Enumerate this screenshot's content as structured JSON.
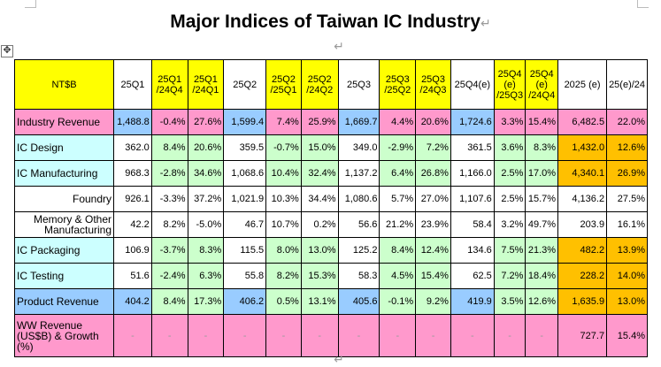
{
  "title": "Major Indices of Taiwan IC Industry",
  "para_mark": "↵",
  "move_handle": "✥",
  "header": {
    "unit": "NT$B",
    "cols": [
      "25Q1",
      "25Q1 /24Q4",
      "25Q1 /24Q1",
      "25Q2",
      "25Q2 /25Q1",
      "25Q2 /24Q2",
      "25Q3",
      "25Q3 /25Q2",
      "25Q3 /24Q3",
      "25Q4(e)",
      "25Q4 (e) /25Q3",
      "25Q4 (e) /24Q4",
      "2025 (e)",
      "25(e)/24"
    ]
  },
  "rows": [
    {
      "label": "Industry Revenue",
      "values": [
        "1,488.8",
        "-0.4%",
        "27.6%",
        "1,599.4",
        "7.4%",
        "25.9%",
        "1,669.7",
        "4.4%",
        "20.6%",
        "1,724.6",
        "3.3%",
        "15.4%",
        "6,482.5",
        "22.0%"
      ]
    },
    {
      "label": "IC Design",
      "values": [
        "362.0",
        "8.4%",
        "20.6%",
        "359.5",
        "-0.7%",
        "15.0%",
        "349.0",
        "-2.9%",
        "7.2%",
        "361.5",
        "3.6%",
        "8.3%",
        "1,432.0",
        "12.6%"
      ]
    },
    {
      "label": "IC Manufacturing",
      "values": [
        "968.3",
        "-2.8%",
        "34.6%",
        "1,068.6",
        "10.4%",
        "32.4%",
        "1,137.2",
        "6.4%",
        "26.8%",
        "1,166.0",
        "2.5%",
        "17.0%",
        "4,340.1",
        "26.9%"
      ]
    },
    {
      "label": "Foundry",
      "values": [
        "926.1",
        "-3.3%",
        "37.2%",
        "1,021.9",
        "10.3%",
        "34.4%",
        "1,080.6",
        "5.7%",
        "27.0%",
        "1,107.6",
        "2.5%",
        "15.7%",
        "4,136.2",
        "27.5%"
      ]
    },
    {
      "label": "Memory & Other Manufacturing",
      "values": [
        "42.2",
        "8.2%",
        "-5.0%",
        "46.7",
        "10.7%",
        "0.2%",
        "56.6",
        "21.2%",
        "23.9%",
        "58.4",
        "3.2%",
        "49.7%",
        "203.9",
        "16.1%"
      ]
    },
    {
      "label": "IC Packaging",
      "values": [
        "106.9",
        "-3.7%",
        "8.3%",
        "115.5",
        "8.0%",
        "13.0%",
        "125.2",
        "8.4%",
        "12.4%",
        "134.6",
        "7.5%",
        "21.3%",
        "482.2",
        "13.9%"
      ]
    },
    {
      "label": "IC Testing",
      "values": [
        "51.6",
        "-2.4%",
        "6.3%",
        "55.8",
        "8.2%",
        "15.3%",
        "58.3",
        "4.5%",
        "15.4%",
        "62.5",
        "7.2%",
        "18.4%",
        "228.2",
        "14.0%"
      ]
    },
    {
      "label": "Product Revenue",
      "values": [
        "404.2",
        "8.4%",
        "17.3%",
        "406.2",
        "0.5%",
        "13.1%",
        "405.6",
        "-0.1%",
        "9.2%",
        "419.9",
        "3.5%",
        "12.6%",
        "1,635.9",
        "13.0%"
      ]
    },
    {
      "label": "WW Revenue (US$B) & Growth (%)",
      "values": [
        "-",
        "-",
        "-",
        "-",
        "-",
        "-",
        "-",
        "-",
        "-",
        "-",
        "-",
        "-",
        "727.7",
        "15.4%"
      ]
    }
  ]
}
